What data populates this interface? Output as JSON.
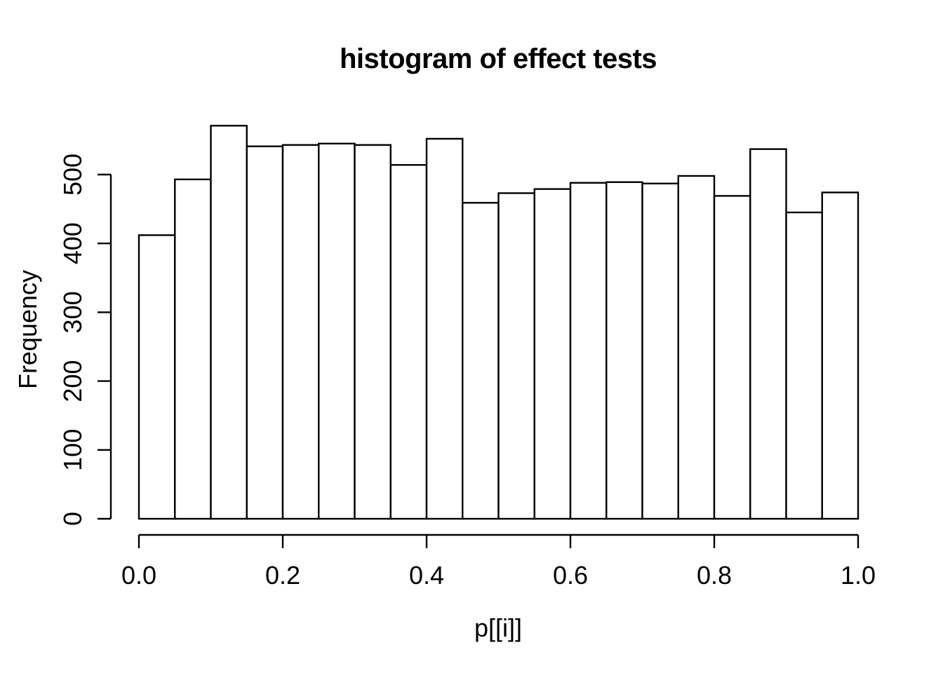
{
  "chart_data": {
    "type": "bar",
    "subtype": "histogram",
    "title": "histogram of effect tests",
    "xlabel": "p[[i]]",
    "ylabel": "Frequency",
    "bin_edges": [
      0.0,
      0.05,
      0.1,
      0.15,
      0.2,
      0.25,
      0.3,
      0.35,
      0.4,
      0.45,
      0.5,
      0.55,
      0.6,
      0.65,
      0.7,
      0.75,
      0.8,
      0.85,
      0.9,
      0.95,
      1.0
    ],
    "counts": [
      412,
      493,
      571,
      541,
      543,
      545,
      543,
      514,
      552,
      459,
      473,
      479,
      488,
      489,
      487,
      498,
      469,
      537,
      445,
      474
    ],
    "x_ticks": [
      0.0,
      0.2,
      0.4,
      0.6,
      0.8,
      1.0
    ],
    "x_tick_labels": [
      "0.0",
      "0.2",
      "0.4",
      "0.6",
      "0.8",
      "1.0"
    ],
    "y_ticks": [
      0,
      100,
      200,
      300,
      400,
      500
    ],
    "y_tick_labels": [
      "0",
      "100",
      "200",
      "300",
      "400",
      "500"
    ],
    "xlim": [
      0.0,
      1.0
    ],
    "y_axis_range": [
      0,
      500
    ],
    "grid": false,
    "legend": false,
    "bar_fill": "#ffffff",
    "bar_stroke": "#000000",
    "axis_color": "#000000",
    "background": "#ffffff"
  }
}
